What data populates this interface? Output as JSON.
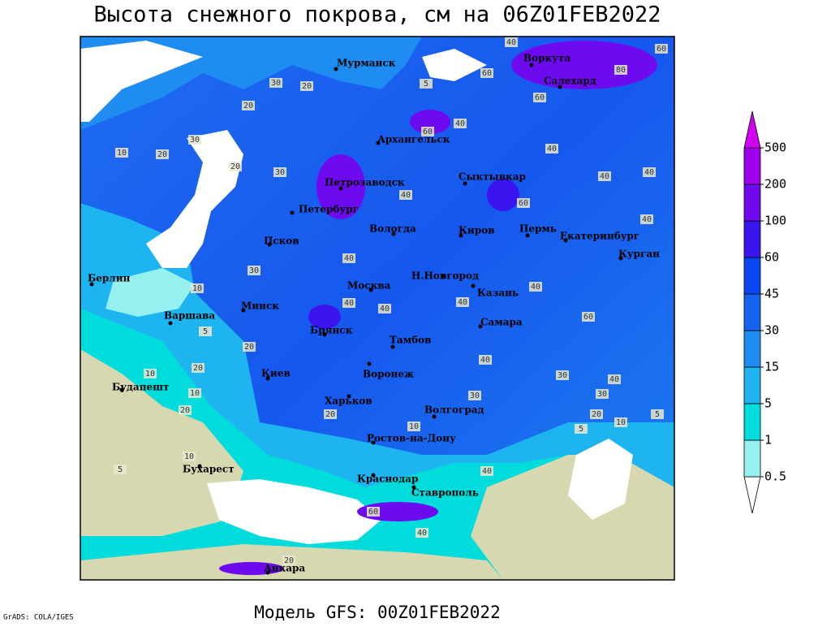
{
  "header": {
    "title": "Высота снежного покрова, см на 06Z01FEB2022"
  },
  "map": {
    "cities": [
      "Мурманск",
      "Воркута",
      "Салехард",
      "Архангельск",
      "Петрозаводск",
      "Сыктывкар",
      "Петербург",
      "Вологда",
      "Киров",
      "Пермь",
      "Екатеринбург",
      "Курган",
      "Псков",
      "Берлин",
      "Варшава",
      "Минск",
      "Москва",
      "Н.Новгород",
      "Казань",
      "Самара",
      "Брянск",
      "Тамбов",
      "Киев",
      "Воронеж",
      "Харьков",
      "Волгоград",
      "Будапешт",
      "Бухарест",
      "Ростов-на-Дону",
      "Краснодар",
      "Ставрополь",
      "Анкара"
    ],
    "contour_labels": [
      40,
      60,
      80,
      60,
      20,
      30,
      20,
      5,
      40,
      60,
      60,
      30,
      10,
      20,
      30,
      20,
      40,
      40,
      60,
      40,
      40,
      40,
      40,
      30,
      40,
      60,
      40,
      40,
      40,
      20,
      10,
      5,
      10,
      20,
      10,
      30,
      40,
      30,
      20,
      10,
      5,
      5,
      10,
      20,
      40,
      20,
      5,
      10,
      30,
      40,
      60,
      40,
      20
    ]
  },
  "legend": {
    "levels": [
      0.5,
      1,
      5,
      15,
      30,
      45,
      60,
      100,
      200,
      500
    ],
    "colors": [
      "#ffffff",
      "#96f0f0",
      "#00dcdc",
      "#1eb4f0",
      "#1e8cf0",
      "#1464f0",
      "#0a46f0",
      "#3c14f0",
      "#6e0af0",
      "#a000f0",
      "#d200f0"
    ]
  },
  "footer": {
    "model": "Модель GFS: 00Z01FEB2022",
    "credit": "GrADS: COLA/IGES"
  }
}
